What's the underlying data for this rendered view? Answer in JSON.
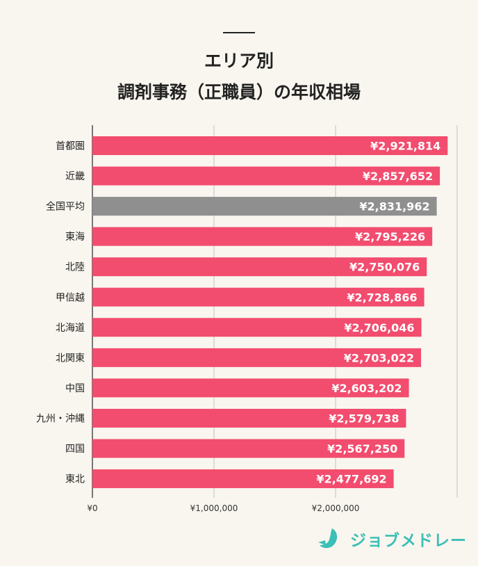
{
  "header": {
    "title_line1": "エリア別",
    "title_line2": "調剤事務（正職員）の年収相場"
  },
  "chart_data": {
    "type": "bar",
    "orientation": "horizontal",
    "title": "エリア別 調剤事務（正職員）の年収相場",
    "categories": [
      "首都圏",
      "近畿",
      "全国平均",
      "東海",
      "北陸",
      "甲信越",
      "北海道",
      "北関東",
      "中国",
      "九州・沖縄",
      "四国",
      "東北"
    ],
    "values": [
      2921814,
      2857652,
      2831962,
      2795226,
      2750076,
      2728866,
      2706046,
      2703022,
      2603202,
      2579738,
      2567250,
      2477692
    ],
    "data_labels": [
      "¥2,921,814",
      "¥2,857,652",
      "¥2,831,962",
      "¥2,795,226",
      "¥2,750,076",
      "¥2,728,866",
      "¥2,706,046",
      "¥2,703,022",
      "¥2,603,202",
      "¥2,579,738",
      "¥2,567,250",
      "¥2,477,692"
    ],
    "x_ticks": [
      0,
      1000000,
      2000000,
      3000000
    ],
    "x_tick_labels": [
      "¥0",
      "¥1,000,000",
      "¥2,000,000",
      ""
    ],
    "xlim": [
      0,
      3000000
    ],
    "grid": true,
    "colors": {
      "bar": "#f24c6e",
      "highlight": "#8f8f8f",
      "highlight_category": "全国平均"
    }
  },
  "brand": {
    "name": "ジョブメドレー",
    "color": "#3bbfb6"
  }
}
